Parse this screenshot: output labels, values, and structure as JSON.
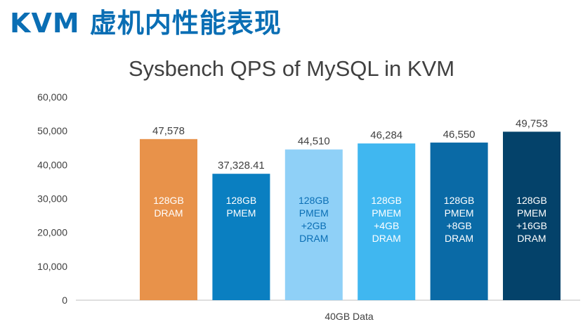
{
  "slide": {
    "title": "KVM 虚机内性能表现"
  },
  "chart_data": {
    "type": "bar",
    "title": "Sysbench QPS of MySQL in KVM",
    "xlabel": "40GB Data",
    "ylabel": "",
    "ylim": [
      0,
      60000
    ],
    "yticks": [
      0,
      10000,
      20000,
      30000,
      40000,
      50000,
      60000
    ],
    "ytick_labels": [
      "0",
      "10,000",
      "20,000",
      "30,000",
      "40,000",
      "50,000",
      "60,000"
    ],
    "grid": false,
    "categories": [
      "40GB Data"
    ],
    "series": [
      {
        "name": "128GB DRAM",
        "label_lines": [
          "128GB",
          "DRAM"
        ],
        "value": 47578,
        "value_label": "47,578",
        "color": "#e8924a",
        "text_color": "#ffffff"
      },
      {
        "name": "128GB PMEM",
        "label_lines": [
          "128GB",
          "PMEM"
        ],
        "value": 37328.41,
        "value_label": "37,328.41",
        "color": "#0a7fc1",
        "text_color": "#ffffff"
      },
      {
        "name": "128GB PMEM +2GB DRAM",
        "label_lines": [
          "128GB",
          "PMEM",
          "+2GB",
          "DRAM"
        ],
        "value": 44510,
        "value_label": "44,510",
        "color": "#8fd0f7",
        "text_color": "#0a6eb4"
      },
      {
        "name": "128GB PMEM +4GB DRAM",
        "label_lines": [
          "128GB",
          "PMEM",
          "+4GB",
          "DRAM"
        ],
        "value": 46284,
        "value_label": "46,284",
        "color": "#40b7f0",
        "text_color": "#ffffff"
      },
      {
        "name": "128GB PMEM +8GB DRAM",
        "label_lines": [
          "128GB",
          "PMEM",
          "+8GB",
          "DRAM"
        ],
        "value": 46550,
        "value_label": "46,550",
        "color": "#0a6aa6",
        "text_color": "#ffffff"
      },
      {
        "name": "128GB PMEM +16GB DRAM",
        "label_lines": [
          "128GB",
          "PMEM",
          "+16GB",
          "DRAM"
        ],
        "value": 49753,
        "value_label": "49,753",
        "color": "#04426a",
        "text_color": "#ffffff"
      }
    ]
  }
}
